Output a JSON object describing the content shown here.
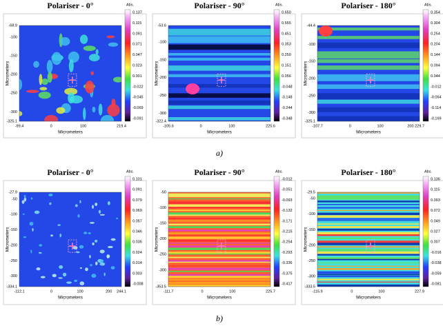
{
  "panels": [
    {
      "title": "Polariser - 0°",
      "y_label": "Micrometers",
      "x_label": "Micrometers",
      "colorbar_title": "Abs.",
      "y_ticks": [
        "-68.9",
        "-100",
        "-150",
        "-200",
        "-250",
        "-300",
        "-325.1"
      ],
      "x_ticks": [
        "-99.4",
        "0",
        "100",
        "219.4"
      ],
      "colorbar_ticks": [
        "0.137",
        "0.115",
        "0.091",
        "0.071",
        "0.047",
        "0.023",
        "0.001",
        "-0.022",
        "-0.045",
        "-0.069",
        "-0.091"
      ]
    },
    {
      "title": "Polariser - 90°",
      "y_label": "Micrometers",
      "x_label": "Micrometers",
      "colorbar_title": "Abs.",
      "y_ticks": [
        "-53.6",
        "-100",
        "-150",
        "-200",
        "-250",
        "-300",
        "-322.4"
      ],
      "x_ticks": [
        "-105.6",
        "0",
        "100",
        "225.6"
      ],
      "colorbar_ticks": [
        "0.650",
        "0.555",
        "0.451",
        "0.353",
        "0.250",
        "0.151",
        "0.056",
        "-0.048",
        "-0.148",
        "-0.244",
        "-0.348"
      ]
    },
    {
      "title": "Polariser - 180°",
      "y_label": "Micrometers",
      "x_label": "Micrometers",
      "colorbar_title": "Abs.",
      "y_ticks": [
        "-44.4",
        "-100",
        "-150",
        "-200",
        "-250",
        "-300",
        "-325.1"
      ],
      "x_ticks": [
        "-107.7",
        "0",
        "100",
        "200",
        "229.7"
      ],
      "colorbar_ticks": [
        "0.354",
        "0.304",
        "0.254",
        "0.204",
        "0.144",
        "0.094",
        "0.044",
        "-0.012",
        "-0.064",
        "-0.114",
        "-0.169"
      ]
    },
    {
      "title": "Polariser - 0°",
      "y_label": "Micrometers",
      "x_label": "Micrometers",
      "colorbar_title": "Abs.",
      "y_ticks": [
        "-27.9",
        "-50",
        "-100",
        "-150",
        "-200",
        "-250",
        "-300",
        "-334.1"
      ],
      "x_ticks": [
        "-112.1",
        "0",
        "100",
        "200",
        "244.1"
      ],
      "colorbar_ticks": [
        "0.101",
        "0.091",
        "0.079",
        "0.069",
        "0.057",
        "0.046",
        "0.036",
        "0.024",
        "0.014",
        "0.003",
        "-0.008"
      ]
    },
    {
      "title": "Polariser - 90°",
      "y_label": "Micrometers",
      "x_label": "Micrometers",
      "colorbar_title": "Abs.",
      "y_ticks": [
        "-50",
        "-100",
        "-150",
        "-200",
        "-250",
        "-300",
        "-353.5"
      ],
      "x_ticks": [
        "-111.7",
        "0",
        "100",
        "225.7"
      ],
      "colorbar_ticks": [
        "-0.012",
        "-0.051",
        "-0.093",
        "-0.132",
        "-0.171",
        "-0.215",
        "-0.254",
        "-0.293",
        "-0.336",
        "-0.375",
        "-0.417"
      ]
    },
    {
      "title": "Polariser - 180°",
      "y_label": "Micrometers",
      "x_label": "Micrometers",
      "colorbar_title": "Abs.",
      "y_ticks": [
        "-29.5",
        "-50",
        "-100",
        "-150",
        "-200",
        "-250",
        "-300",
        "-333.5"
      ],
      "x_ticks": [
        "-115.9",
        "0",
        "100",
        "227.9"
      ],
      "colorbar_ticks": [
        "0.136",
        "0.115",
        "0.093",
        "0.072",
        "0.049",
        "0.027",
        "0.007",
        "-0.016",
        "-0.038",
        "-0.059",
        "-0.081"
      ]
    }
  ],
  "captions": [
    "a)",
    "b)"
  ]
}
